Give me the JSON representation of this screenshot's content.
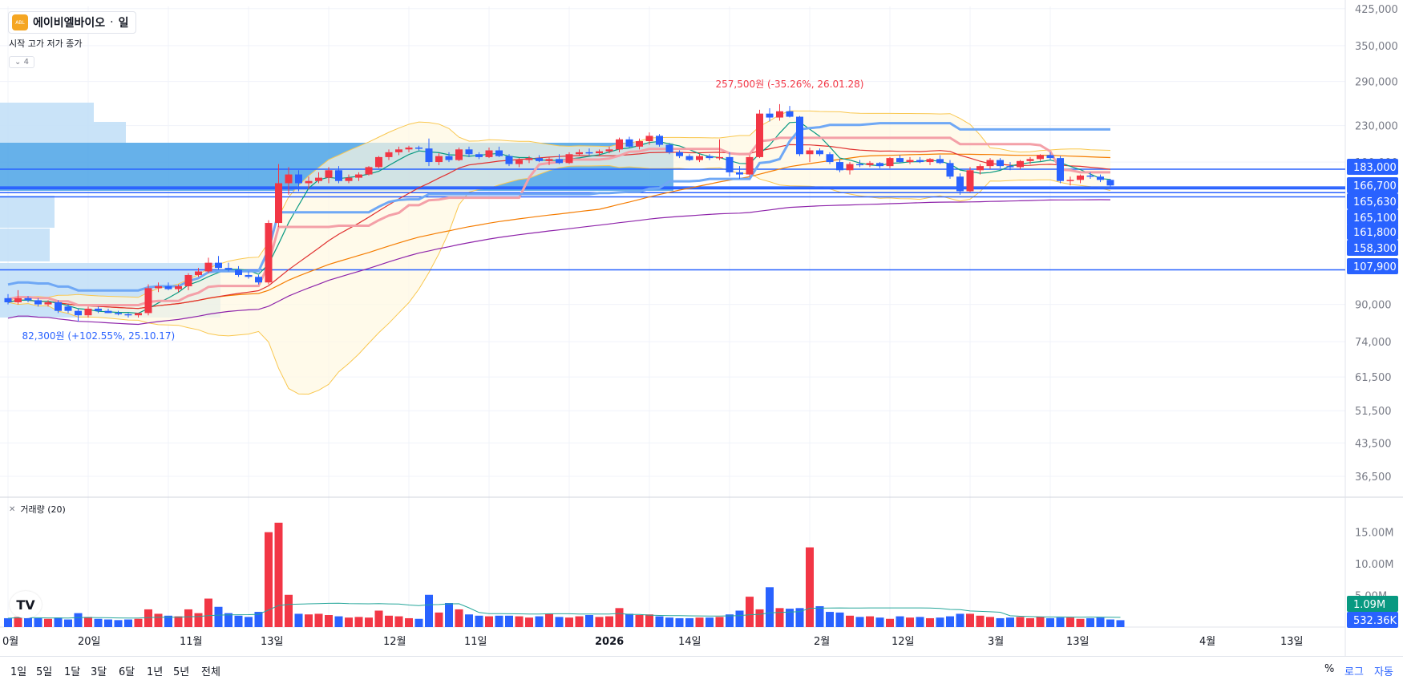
{
  "header": {
    "symbol_name": "에이비엘바이오",
    "separator": "·",
    "interval": "일",
    "logo_text": "ABL",
    "ohlc_label": "시작 고가 저가 종가",
    "collapse_count": "4"
  },
  "volume_legend": {
    "label": "거래량 (20)"
  },
  "price_axis": {
    "ticks": [
      "425,000",
      "350,000",
      "290,000",
      "230,000",
      "190,000",
      "90,000",
      "74,000",
      "61,500",
      "51,500",
      "43,500",
      "36,500"
    ],
    "level_labels": [
      {
        "label": "183,000",
        "color": "#2962ff"
      },
      {
        "label": "166,700",
        "color": "#2962ff"
      },
      {
        "label": "165,630",
        "color": "#2962ff"
      },
      {
        "label": "165,100",
        "color": "#2962ff"
      },
      {
        "label": "161,800",
        "color": "#2962ff"
      },
      {
        "label": "158,300",
        "color": "#2962ff"
      },
      {
        "label": "107,900",
        "color": "#2962ff"
      }
    ]
  },
  "volume_axis": {
    "ticks": [
      "15.00M",
      "10.00M",
      "5.00M"
    ],
    "badges": [
      {
        "label": "1.09M",
        "color": "#089981"
      },
      {
        "label": "532.36K",
        "color": "#2962ff"
      }
    ]
  },
  "time_axis": {
    "labels": [
      {
        "label": "0월",
        "bold": false
      },
      {
        "label": "20일",
        "bold": false
      },
      {
        "label": "11월",
        "bold": false
      },
      {
        "label": "13일",
        "bold": false
      },
      {
        "label": "12월",
        "bold": false
      },
      {
        "label": "11일",
        "bold": false
      },
      {
        "label": "2026",
        "bold": true
      },
      {
        "label": "14일",
        "bold": false
      },
      {
        "label": "2월",
        "bold": false
      },
      {
        "label": "12일",
        "bold": false
      },
      {
        "label": "3월",
        "bold": false
      },
      {
        "label": "13일",
        "bold": false
      },
      {
        "label": "4월",
        "bold": false
      },
      {
        "label": "13일",
        "bold": false
      }
    ]
  },
  "annotations": {
    "high": {
      "text": "257,500원 (-35.26%, 26.01.28)",
      "color": "#f23645"
    },
    "low": {
      "text": "82,300원 (+102.55%, 25.10.17)",
      "color": "#2962ff"
    }
  },
  "bottom_bar": {
    "ranges": [
      "1일",
      "5일",
      "1달",
      "3달",
      "6달",
      "1년",
      "5년",
      "전체"
    ],
    "percent": "%",
    "log": "로그",
    "auto": "자동"
  },
  "colors": {
    "up": "#f23645",
    "down": "#2962ff",
    "ma5": "#089981",
    "ma20": "#e03131",
    "ma60": "#f57c00",
    "ma120": "#8e24aa",
    "bollinger": "#f9c74f",
    "ichimoku": "#6fa8f5",
    "red_band": "#f4a0a8",
    "volume_ma": "#26a69a"
  },
  "chart_data": {
    "type": "candlestick",
    "y_scale": "log",
    "ylim": [
      33000,
      430000
    ],
    "candles": [
      [
        0,
        93000,
        95000,
        90000,
        91000
      ],
      [
        1,
        91000,
        97000,
        90000,
        93000
      ],
      [
        2,
        93000,
        94000,
        91000,
        92000
      ],
      [
        3,
        92000,
        93000,
        89000,
        90000
      ],
      [
        4,
        90000,
        92000,
        89000,
        91000
      ],
      [
        5,
        91000,
        92000,
        86000,
        87000
      ],
      [
        6,
        89000,
        90000,
        86000,
        87000
      ],
      [
        7,
        87000,
        88000,
        82300,
        85000
      ],
      [
        8,
        85000,
        89000,
        84000,
        88000
      ],
      [
        9,
        88000,
        89000,
        86000,
        87000
      ],
      [
        10,
        87000,
        88000,
        86000,
        86000
      ],
      [
        11,
        86000,
        87000,
        85000,
        85500
      ],
      [
        12,
        85500,
        86000,
        84000,
        85000
      ],
      [
        13,
        85000,
        86000,
        84000,
        86000
      ],
      [
        14,
        86000,
        100000,
        85000,
        98000
      ],
      [
        15,
        98000,
        101000,
        96000,
        99000
      ],
      [
        16,
        99000,
        101000,
        97000,
        97500
      ],
      [
        17,
        97500,
        100000,
        96000,
        99000
      ],
      [
        18,
        99000,
        106000,
        97000,
        105000
      ],
      [
        19,
        105000,
        109000,
        104000,
        107000
      ],
      [
        20,
        107000,
        115000,
        106000,
        112000
      ],
      [
        21,
        112000,
        116000,
        108000,
        109000
      ],
      [
        22,
        109000,
        112000,
        107000,
        108000
      ],
      [
        23,
        108000,
        110000,
        104000,
        105000
      ],
      [
        24,
        105000,
        107000,
        103000,
        104000
      ],
      [
        25,
        104000,
        105000,
        100000,
        101000
      ],
      [
        26,
        101000,
        140000,
        100000,
        138000
      ],
      [
        27,
        138000,
        188000,
        135000,
        170000
      ],
      [
        28,
        170000,
        185000,
        160000,
        178000
      ],
      [
        29,
        178000,
        182000,
        163000,
        170000
      ],
      [
        30,
        170000,
        176000,
        165000,
        172000
      ],
      [
        31,
        172000,
        180000,
        170000,
        175000
      ],
      [
        32,
        175000,
        185000,
        170000,
        182000
      ],
      [
        33,
        182000,
        186000,
        170000,
        172000
      ],
      [
        34,
        172000,
        178000,
        170000,
        175000
      ],
      [
        35,
        175000,
        180000,
        172000,
        178000
      ],
      [
        36,
        178000,
        186000,
        177000,
        185000
      ],
      [
        37,
        185000,
        196000,
        184000,
        195000
      ],
      [
        38,
        195000,
        203000,
        192000,
        200000
      ],
      [
        39,
        200000,
        206000,
        197000,
        203000
      ],
      [
        40,
        203000,
        207000,
        200000,
        205000
      ],
      [
        41,
        205000,
        207000,
        202000,
        204000
      ],
      [
        42,
        204000,
        215000,
        186000,
        190000
      ],
      [
        43,
        190000,
        199000,
        187000,
        196000
      ],
      [
        44,
        196000,
        200000,
        190000,
        192000
      ],
      [
        45,
        192000,
        205000,
        191000,
        203000
      ],
      [
        46,
        203000,
        206000,
        195000,
        198000
      ],
      [
        47,
        198000,
        200000,
        193000,
        195000
      ],
      [
        48,
        195000,
        205000,
        194000,
        202000
      ],
      [
        49,
        202000,
        206000,
        195000,
        196000
      ],
      [
        50,
        196000,
        198000,
        186000,
        188000
      ],
      [
        51,
        188000,
        194000,
        185000,
        192000
      ],
      [
        52,
        192000,
        196000,
        189000,
        194000
      ],
      [
        53,
        194000,
        197000,
        190000,
        191000
      ],
      [
        54,
        191000,
        195000,
        187000,
        193000
      ],
      [
        55,
        193000,
        198000,
        188000,
        189000
      ],
      [
        56,
        189000,
        200000,
        188000,
        198000
      ],
      [
        57,
        198000,
        203000,
        196000,
        200000
      ],
      [
        58,
        200000,
        204000,
        197000,
        199000
      ],
      [
        59,
        199000,
        203000,
        196000,
        201000
      ],
      [
        60,
        201000,
        206000,
        199000,
        203000
      ],
      [
        61,
        203000,
        216000,
        200000,
        214000
      ],
      [
        62,
        214000,
        217000,
        205000,
        206000
      ],
      [
        63,
        206000,
        215000,
        203000,
        212000
      ],
      [
        64,
        212000,
        222000,
        208000,
        218000
      ],
      [
        65,
        218000,
        220000,
        206000,
        208000
      ],
      [
        66,
        208000,
        210000,
        198000,
        200000
      ],
      [
        67,
        200000,
        202000,
        194000,
        196000
      ],
      [
        68,
        196000,
        198000,
        191000,
        192000
      ],
      [
        69,
        192000,
        198000,
        190000,
        196000
      ],
      [
        70,
        196000,
        198000,
        192000,
        194000
      ],
      [
        71,
        194000,
        214000,
        192000,
        195000
      ],
      [
        72,
        195000,
        200000,
        176000,
        180000
      ],
      [
        73,
        180000,
        186000,
        174000,
        178000
      ],
      [
        74,
        178000,
        197000,
        176000,
        195000
      ],
      [
        75,
        195000,
        250000,
        194000,
        245000
      ],
      [
        76,
        245000,
        252000,
        235000,
        240000
      ],
      [
        77,
        240000,
        257500,
        236000,
        248000
      ],
      [
        78,
        248000,
        255000,
        240000,
        241000
      ],
      [
        79,
        241000,
        242000,
        196000,
        198000
      ],
      [
        80,
        198000,
        205000,
        190000,
        202000
      ],
      [
        81,
        202000,
        204000,
        196000,
        198000
      ],
      [
        82,
        198000,
        200000,
        188000,
        190000
      ],
      [
        83,
        190000,
        193000,
        180000,
        182000
      ],
      [
        84,
        182000,
        190000,
        178000,
        188000
      ],
      [
        85,
        188000,
        192000,
        185000,
        187000
      ],
      [
        86,
        187000,
        191000,
        185000,
        189000
      ],
      [
        87,
        189000,
        190000,
        184000,
        186000
      ],
      [
        88,
        186000,
        195000,
        184000,
        194000
      ],
      [
        89,
        194000,
        197000,
        189000,
        190000
      ],
      [
        90,
        190000,
        195000,
        188000,
        192000
      ],
      [
        91,
        192000,
        195000,
        189000,
        190000
      ],
      [
        92,
        190000,
        194000,
        187000,
        193000
      ],
      [
        93,
        193000,
        197000,
        188000,
        189000
      ],
      [
        94,
        189000,
        192000,
        174000,
        176000
      ],
      [
        95,
        176000,
        179000,
        160000,
        163000
      ],
      [
        96,
        163000,
        185000,
        162000,
        182000
      ],
      [
        97,
        182000,
        188000,
        178000,
        186000
      ],
      [
        98,
        186000,
        194000,
        183000,
        192000
      ],
      [
        99,
        192000,
        194000,
        184000,
        186000
      ],
      [
        100,
        186000,
        190000,
        182000,
        185000
      ],
      [
        101,
        185000,
        192000,
        183000,
        191000
      ],
      [
        102,
        191000,
        195000,
        188000,
        193000
      ],
      [
        103,
        193000,
        198000,
        191000,
        197000
      ],
      [
        104,
        197000,
        200000,
        192000,
        194000
      ],
      [
        105,
        194000,
        196000,
        170000,
        172000
      ],
      [
        106,
        172000,
        176000,
        168000,
        173000
      ],
      [
        107,
        173000,
        178000,
        170000,
        177000
      ],
      [
        108,
        177000,
        180000,
        174000,
        176000
      ],
      [
        109,
        176000,
        178000,
        171000,
        173000
      ],
      [
        110,
        173000,
        174000,
        166700,
        168000
      ]
    ],
    "volume_M": [
      1.4,
      1.6,
      1.5,
      1.4,
      1.3,
      1.5,
      1.2,
      2.2,
      1.6,
      1.3,
      1.2,
      1.1,
      1.2,
      1.3,
      2.8,
      2.1,
      1.8,
      1.7,
      2.8,
      2.2,
      4.5,
      3.2,
      2.2,
      1.8,
      1.6,
      2.4,
      15.0,
      16.5,
      5.1,
      2.1,
      2.0,
      2.1,
      1.9,
      1.7,
      1.5,
      1.6,
      1.5,
      2.6,
      1.8,
      1.7,
      1.4,
      1.3,
      5.1,
      2.3,
      3.8,
      2.8,
      2.0,
      1.8,
      1.7,
      1.8,
      1.8,
      1.7,
      1.5,
      1.7,
      2.1,
      1.6,
      1.5,
      1.7,
      1.9,
      1.6,
      1.7,
      3.0,
      2.1,
      1.9,
      2.0,
      1.7,
      1.5,
      1.4,
      1.4,
      1.5,
      1.5,
      1.6,
      2.0,
      2.6,
      4.8,
      2.8,
      6.3,
      3.0,
      2.9,
      3.0,
      12.6,
      3.3,
      2.4,
      2.3,
      1.8,
      1.6,
      1.7,
      1.5,
      1.3,
      1.7,
      1.5,
      1.6,
      1.4,
      1.5,
      1.7,
      2.1,
      2.1,
      1.8,
      1.6,
      1.4,
      1.5,
      1.6,
      1.4,
      1.6,
      1.4,
      1.5,
      1.5,
      1.3,
      1.4,
      1.5,
      1.2,
      1.09
    ]
  }
}
